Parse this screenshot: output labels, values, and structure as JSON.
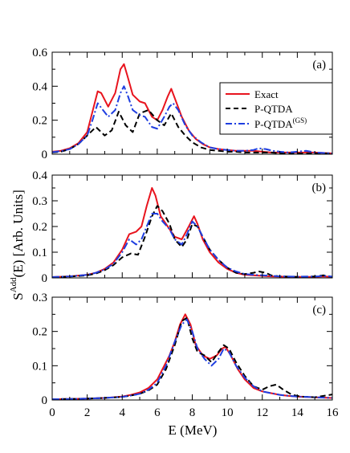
{
  "figure": {
    "ylabel_main": "S",
    "ylabel_sup": "Add",
    "ylabel_rest": "(E) [Arb. Units]",
    "xlabel": "E (MeV)"
  },
  "legend": {
    "items": [
      {
        "label": "Exact",
        "sup": "",
        "color": "#e8141e",
        "dash": "solid"
      },
      {
        "label": "P-QTDA",
        "sup": "",
        "color": "#000000",
        "dash": "dashed"
      },
      {
        "label": "P-QTDA",
        "sup": "(GS)",
        "color": "#1f3ee0",
        "dash": "dashdot"
      }
    ]
  },
  "chart_data": [
    {
      "type": "line",
      "panel_label": "(a)",
      "xlim": [
        0,
        16
      ],
      "ylim": [
        0,
        0.6
      ],
      "yticks": [
        "0",
        "0.2",
        "0.4",
        "0.6"
      ],
      "xticks": [
        "0",
        "2",
        "4",
        "6",
        "8",
        "10",
        "12",
        "14",
        "16"
      ],
      "show_xtick_labels": false,
      "series": [
        {
          "name": "Exact",
          "color": "#e8141e",
          "dash": "solid",
          "x": [
            0,
            0.5,
            1,
            1.5,
            2,
            2.3,
            2.6,
            2.8,
            3.2,
            3.6,
            3.9,
            4.1,
            4.3,
            4.6,
            5.0,
            5.3,
            5.7,
            6.0,
            6.3,
            6.6,
            6.8,
            7.0,
            7.4,
            7.8,
            8.2,
            8.6,
            9.0,
            9.5,
            10,
            10.5,
            11,
            11.5,
            12,
            12.5,
            13,
            13.5,
            14,
            15,
            16
          ],
          "y": [
            0.015,
            0.02,
            0.035,
            0.065,
            0.13,
            0.25,
            0.37,
            0.36,
            0.28,
            0.36,
            0.5,
            0.53,
            0.46,
            0.35,
            0.31,
            0.3,
            0.22,
            0.2,
            0.26,
            0.34,
            0.385,
            0.33,
            0.22,
            0.14,
            0.09,
            0.06,
            0.04,
            0.03,
            0.025,
            0.02,
            0.02,
            0.02,
            0.015,
            0.01,
            0.01,
            0.01,
            0.01,
            0.01,
            0.005
          ]
        },
        {
          "name": "P-QTDA",
          "color": "#000000",
          "dash": "dashed",
          "x": [
            0,
            0.5,
            1,
            1.5,
            2,
            2.5,
            3.0,
            3.4,
            3.8,
            4.2,
            4.6,
            5.0,
            5.5,
            6.0,
            6.4,
            6.8,
            7.2,
            7.6,
            8.0,
            8.5,
            9.0,
            9.5,
            10,
            10.5,
            11,
            11.5,
            12,
            12.5,
            13,
            13.5,
            14,
            15,
            16
          ],
          "y": [
            0.01,
            0.015,
            0.03,
            0.06,
            0.11,
            0.16,
            0.11,
            0.14,
            0.25,
            0.17,
            0.13,
            0.24,
            0.26,
            0.2,
            0.17,
            0.24,
            0.16,
            0.11,
            0.07,
            0.04,
            0.025,
            0.02,
            0.015,
            0.015,
            0.01,
            0.01,
            0.01,
            0.01,
            0.005,
            0.005,
            0.005,
            0.005,
            0.005
          ]
        },
        {
          "name": "P-QTDA(GS)",
          "color": "#1f3ee0",
          "dash": "dashdot",
          "x": [
            0,
            0.5,
            1,
            1.5,
            2,
            2.3,
            2.6,
            2.9,
            3.2,
            3.6,
            3.9,
            4.1,
            4.3,
            4.6,
            5.0,
            5.3,
            5.7,
            6.0,
            6.4,
            6.7,
            6.9,
            7.2,
            7.6,
            8.0,
            8.5,
            9.0,
            9.5,
            10,
            10.5,
            11,
            11.5,
            11.8,
            12.2,
            12.6,
            13,
            13.5,
            14,
            14.5,
            15,
            16
          ],
          "y": [
            0.012,
            0.018,
            0.03,
            0.06,
            0.11,
            0.2,
            0.3,
            0.26,
            0.22,
            0.26,
            0.36,
            0.4,
            0.35,
            0.26,
            0.23,
            0.22,
            0.16,
            0.15,
            0.22,
            0.28,
            0.3,
            0.26,
            0.17,
            0.11,
            0.07,
            0.04,
            0.03,
            0.025,
            0.02,
            0.02,
            0.025,
            0.035,
            0.03,
            0.02,
            0.015,
            0.01,
            0.015,
            0.02,
            0.01,
            0.005
          ]
        }
      ]
    },
    {
      "type": "line",
      "panel_label": "(b)",
      "xlim": [
        0,
        16
      ],
      "ylim": [
        0,
        0.4
      ],
      "yticks": [
        "0",
        "0.1",
        "0.2",
        "0.3",
        "0.4"
      ],
      "xticks": [
        "0",
        "2",
        "4",
        "6",
        "8",
        "10",
        "12",
        "14",
        "16"
      ],
      "show_xtick_labels": false,
      "series": [
        {
          "name": "Exact",
          "color": "#e8141e",
          "dash": "solid",
          "x": [
            0,
            1,
            2,
            2.5,
            3,
            3.5,
            4.0,
            4.4,
            4.8,
            5.1,
            5.4,
            5.7,
            5.9,
            6.2,
            6.6,
            7.0,
            7.4,
            7.8,
            8.1,
            8.3,
            8.6,
            9.0,
            9.5,
            10,
            10.5,
            11,
            11.5,
            12,
            12.5,
            13,
            14,
            15,
            15.5,
            16
          ],
          "y": [
            0.003,
            0.006,
            0.012,
            0.02,
            0.035,
            0.06,
            0.11,
            0.17,
            0.18,
            0.2,
            0.28,
            0.35,
            0.32,
            0.24,
            0.2,
            0.16,
            0.15,
            0.2,
            0.24,
            0.21,
            0.15,
            0.1,
            0.06,
            0.035,
            0.02,
            0.012,
            0.01,
            0.008,
            0.006,
            0.005,
            0.004,
            0.004,
            0.006,
            0.004
          ]
        },
        {
          "name": "P-QTDA",
          "color": "#000000",
          "dash": "dashed",
          "x": [
            0,
            1,
            2,
            2.5,
            3,
            3.5,
            4.0,
            4.5,
            4.9,
            5.3,
            5.7,
            6.0,
            6.3,
            6.7,
            7.0,
            7.4,
            7.7,
            8.0,
            8.3,
            8.6,
            9.0,
            9.5,
            10,
            10.5,
            11,
            11.5,
            11.8,
            12.2,
            12.5,
            13,
            14,
            15,
            15.5,
            16
          ],
          "y": [
            0.003,
            0.005,
            0.01,
            0.017,
            0.03,
            0.05,
            0.08,
            0.095,
            0.09,
            0.16,
            0.24,
            0.28,
            0.26,
            0.21,
            0.15,
            0.12,
            0.15,
            0.21,
            0.2,
            0.16,
            0.11,
            0.07,
            0.04,
            0.02,
            0.015,
            0.02,
            0.025,
            0.02,
            0.01,
            0.006,
            0.004,
            0.006,
            0.01,
            0.004
          ]
        },
        {
          "name": "P-QTDA(GS)",
          "color": "#1f3ee0",
          "dash": "dashdot",
          "x": [
            0,
            1,
            2,
            2.5,
            3,
            3.5,
            4.0,
            4.4,
            4.8,
            5.1,
            5.4,
            5.7,
            6.0,
            6.3,
            6.7,
            7.0,
            7.4,
            7.7,
            8.0,
            8.3,
            8.6,
            9.0,
            9.5,
            10,
            10.5,
            11,
            11.5,
            12,
            12.5,
            13,
            14,
            15,
            15.5,
            16
          ],
          "y": [
            0.003,
            0.006,
            0.012,
            0.02,
            0.033,
            0.055,
            0.1,
            0.15,
            0.13,
            0.15,
            0.2,
            0.25,
            0.25,
            0.22,
            0.19,
            0.15,
            0.13,
            0.17,
            0.22,
            0.2,
            0.16,
            0.11,
            0.07,
            0.04,
            0.025,
            0.015,
            0.012,
            0.01,
            0.008,
            0.006,
            0.005,
            0.005,
            0.008,
            0.005
          ]
        }
      ]
    },
    {
      "type": "line",
      "panel_label": "(c)",
      "xlim": [
        0,
        16
      ],
      "ylim": [
        0,
        0.3
      ],
      "yticks": [
        "0",
        "0.1",
        "0.2",
        "0.3"
      ],
      "xticks": [
        "0",
        "2",
        "4",
        "6",
        "8",
        "10",
        "12",
        "14",
        "16"
      ],
      "show_xtick_labels": true,
      "series": [
        {
          "name": "Exact",
          "color": "#e8141e",
          "dash": "solid",
          "x": [
            0,
            1,
            2,
            3,
            4,
            4.5,
            5.0,
            5.5,
            6.0,
            6.3,
            6.7,
            7.0,
            7.3,
            7.6,
            7.9,
            8.2,
            8.6,
            9.0,
            9.4,
            9.7,
            9.9,
            10.2,
            10.6,
            11.0,
            11.5,
            12,
            12.5,
            13,
            13.5,
            14,
            15,
            16
          ],
          "y": [
            0.002,
            0.003,
            0.004,
            0.006,
            0.01,
            0.015,
            0.022,
            0.035,
            0.06,
            0.09,
            0.13,
            0.17,
            0.22,
            0.25,
            0.22,
            0.16,
            0.13,
            0.12,
            0.13,
            0.15,
            0.155,
            0.13,
            0.09,
            0.06,
            0.035,
            0.025,
            0.02,
            0.015,
            0.012,
            0.01,
            0.008,
            0.006
          ]
        },
        {
          "name": "P-QTDA",
          "color": "#000000",
          "dash": "dashed",
          "x": [
            0,
            1,
            2,
            3,
            4,
            4.5,
            5.0,
            5.5,
            6.0,
            6.5,
            7.0,
            7.4,
            7.7,
            8.0,
            8.3,
            8.7,
            9.1,
            9.5,
            9.8,
            10.1,
            10.5,
            11.0,
            11.5,
            12.0,
            12.4,
            12.8,
            13.2,
            13.7,
            14.2,
            15,
            15.5,
            16
          ],
          "y": [
            0.002,
            0.003,
            0.004,
            0.006,
            0.009,
            0.013,
            0.018,
            0.028,
            0.045,
            0.09,
            0.16,
            0.23,
            0.24,
            0.18,
            0.14,
            0.13,
            0.11,
            0.14,
            0.16,
            0.15,
            0.11,
            0.07,
            0.04,
            0.03,
            0.04,
            0.045,
            0.03,
            0.015,
            0.01,
            0.008,
            0.012,
            0.016
          ]
        },
        {
          "name": "P-QTDA(GS)",
          "color": "#1f3ee0",
          "dash": "dashdot",
          "x": [
            0,
            1,
            2,
            3,
            4,
            4.5,
            5.0,
            5.5,
            6.0,
            6.5,
            7.0,
            7.4,
            7.7,
            8.0,
            8.3,
            8.7,
            9.1,
            9.5,
            9.8,
            10.1,
            10.5,
            11.0,
            11.5,
            12,
            12.5,
            13,
            13.5,
            14,
            15,
            16
          ],
          "y": [
            0.002,
            0.003,
            0.004,
            0.006,
            0.009,
            0.013,
            0.018,
            0.03,
            0.05,
            0.1,
            0.17,
            0.22,
            0.235,
            0.2,
            0.15,
            0.12,
            0.1,
            0.12,
            0.15,
            0.14,
            0.1,
            0.065,
            0.04,
            0.025,
            0.02,
            0.015,
            0.012,
            0.01,
            0.008,
            0.006
          ]
        }
      ]
    }
  ]
}
